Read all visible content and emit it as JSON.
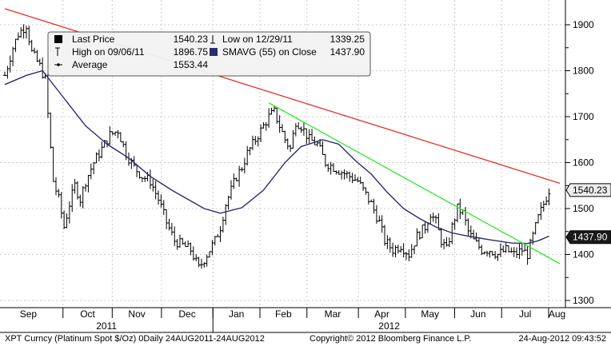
{
  "chart_data": {
    "type": "line",
    "style": "ohlc bars with moving average and two trend lines",
    "legend": {
      "placement": "top-left",
      "rows": [
        [
          {
            "glyph": "last",
            "label": "Last Price",
            "value": "1540.23"
          },
          {
            "glyph": "low",
            "label": "Low on 12/29/11",
            "value": "1339.25"
          }
        ],
        [
          {
            "glyph": "high",
            "label": "High on 09/06/11",
            "value": "1896.75"
          },
          {
            "glyph": "sma",
            "label": "SMAVG (55) on Close",
            "value": "1437.90"
          }
        ],
        [
          {
            "glyph": "avg",
            "label": "Average",
            "value": "1553.44"
          }
        ]
      ]
    },
    "x_axis": {
      "months": [
        "Sep",
        "Oct",
        "Nov",
        "Dec",
        "Jan",
        "Feb",
        "Mar",
        "Apr",
        "May",
        "Jun",
        "Jul",
        "Aug"
      ],
      "years": [
        "2011",
        "2012"
      ]
    },
    "y_axis": {
      "range": [
        1280,
        1930
      ],
      "ticks": [
        "1900",
        "1800",
        "1700",
        "1600",
        "1500",
        "1400",
        "1300"
      ],
      "side": "right"
    },
    "grid": true,
    "price_tags": [
      {
        "label": "1540.23",
        "value": 1540.23,
        "style": "light"
      },
      {
        "label": "1437.90",
        "value": 1437.9,
        "style": "dark"
      }
    ],
    "price_anchors": [
      [
        0,
        1790
      ],
      [
        3,
        1850
      ],
      [
        5,
        1880
      ],
      [
        8,
        1900
      ],
      [
        10,
        1840
      ],
      [
        13,
        1810
      ],
      [
        15,
        1780
      ],
      [
        17,
        1630
      ],
      [
        18,
        1560
      ],
      [
        20,
        1520
      ],
      [
        22,
        1460
      ],
      [
        24,
        1510
      ],
      [
        26,
        1550
      ],
      [
        28,
        1520
      ],
      [
        30,
        1560
      ],
      [
        33,
        1600
      ],
      [
        36,
        1630
      ],
      [
        39,
        1660
      ],
      [
        42,
        1670
      ],
      [
        45,
        1620
      ],
      [
        48,
        1590
      ],
      [
        51,
        1570
      ],
      [
        54,
        1560
      ],
      [
        57,
        1520
      ],
      [
        60,
        1470
      ],
      [
        63,
        1430
      ],
      [
        66,
        1420
      ],
      [
        69,
        1410
      ],
      [
        72,
        1370
      ],
      [
        75,
        1400
      ],
      [
        78,
        1430
      ],
      [
        80,
        1460
      ],
      [
        82,
        1510
      ],
      [
        84,
        1540
      ],
      [
        86,
        1570
      ],
      [
        88,
        1590
      ],
      [
        90,
        1620
      ],
      [
        92,
        1640
      ],
      [
        95,
        1670
      ],
      [
        98,
        1700
      ],
      [
        100,
        1710
      ],
      [
        102,
        1680
      ],
      [
        104,
        1650
      ],
      [
        106,
        1630
      ],
      [
        108,
        1690
      ],
      [
        110,
        1680
      ],
      [
        113,
        1650
      ],
      [
        116,
        1640
      ],
      [
        119,
        1600
      ],
      [
        122,
        1590
      ],
      [
        125,
        1580
      ],
      [
        128,
        1570
      ],
      [
        131,
        1560
      ],
      [
        133,
        1540
      ],
      [
        136,
        1510
      ],
      [
        139,
        1470
      ],
      [
        141,
        1430
      ],
      [
        144,
        1410
      ],
      [
        147,
        1420
      ],
      [
        150,
        1400
      ],
      [
        153,
        1440
      ],
      [
        156,
        1460
      ],
      [
        158,
        1490
      ],
      [
        160,
        1470
      ],
      [
        162,
        1430
      ],
      [
        164,
        1410
      ],
      [
        166,
        1460
      ],
      [
        168,
        1500
      ],
      [
        170,
        1490
      ],
      [
        172,
        1450
      ],
      [
        174,
        1430
      ],
      [
        177,
        1410
      ],
      [
        180,
        1410
      ],
      [
        183,
        1400
      ],
      [
        186,
        1410
      ],
      [
        189,
        1400
      ],
      [
        192,
        1410
      ],
      [
        194,
        1400
      ],
      [
        196,
        1440
      ],
      [
        198,
        1480
      ],
      [
        200,
        1510
      ],
      [
        202,
        1540
      ]
    ],
    "sma_points": [
      [
        0,
        1770
      ],
      [
        8,
        1790
      ],
      [
        14,
        1800
      ],
      [
        22,
        1740
      ],
      [
        30,
        1680
      ],
      [
        38,
        1640
      ],
      [
        46,
        1610
      ],
      [
        54,
        1570
      ],
      [
        62,
        1540
      ],
      [
        68,
        1520
      ],
      [
        74,
        1500
      ],
      [
        80,
        1490
      ],
      [
        88,
        1502
      ],
      [
        96,
        1540
      ],
      [
        104,
        1600
      ],
      [
        110,
        1635
      ],
      [
        118,
        1650
      ],
      [
        124,
        1640
      ],
      [
        130,
        1605
      ],
      [
        136,
        1575
      ],
      [
        142,
        1535
      ],
      [
        148,
        1500
      ],
      [
        154,
        1478
      ],
      [
        160,
        1460
      ],
      [
        166,
        1447
      ],
      [
        172,
        1440
      ],
      [
        180,
        1432
      ],
      [
        188,
        1425
      ],
      [
        194,
        1424
      ],
      [
        198,
        1430
      ],
      [
        202,
        1440
      ]
    ],
    "trend_lines": [
      {
        "color": "#e8302a",
        "from": [
          0,
          1935
        ],
        "to": [
          206,
          1555
        ]
      },
      {
        "color": "#32e632",
        "from": [
          98,
          1730
        ],
        "to": [
          206,
          1380
        ]
      }
    ]
  },
  "footer": {
    "left": "XPT Curncy (Platinum Spot  $/Oz) 0Daily 24AUG2011-24AUG2012",
    "center": "Copyright© 2012 Bloomberg Finance L.P.",
    "right": "24-Aug-2012 09:43:52"
  }
}
